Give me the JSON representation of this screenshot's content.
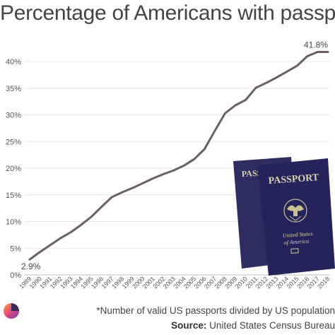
{
  "title": "Percentage of Americans with passports",
  "footnote": "*Number of valid US passports divided by US population",
  "source_label": "Source:",
  "source_text": "United States Census Bureau",
  "passport_image": {
    "cover_text_1": "PASSPORT",
    "cover_text_2": "PASSPORT",
    "cover_subtitle_line1": "United States",
    "cover_subtitle_line2": "of America",
    "color": "#2a2a5e"
  },
  "chart_data": {
    "type": "line",
    "title": "Percentage of Americans with passports",
    "x": [
      "1989",
      "1990",
      "1991",
      "1992",
      "1993",
      "1994",
      "1995",
      "1996",
      "1997",
      "1998",
      "1999",
      "2000",
      "2001",
      "2002",
      "2003",
      "2004",
      "2005",
      "2006",
      "2007",
      "2008",
      "2009",
      "2010",
      "2011",
      "2012",
      "2013",
      "2014",
      "2015",
      "2016",
      "2017",
      "2018"
    ],
    "values": [
      2.9,
      4.3,
      5.6,
      6.9,
      8.0,
      9.4,
      10.9,
      12.8,
      14.6,
      15.5,
      16.3,
      17.2,
      18.1,
      18.9,
      19.6,
      20.5,
      21.7,
      23.6,
      27.0,
      30.3,
      31.8,
      32.8,
      35.1,
      36.0,
      37.0,
      38.1,
      39.2,
      41.0,
      41.8,
      41.8
    ],
    "ylim": [
      0,
      42
    ],
    "yticks": [
      0,
      5,
      10,
      15,
      20,
      25,
      30,
      35,
      40
    ],
    "ytick_labels": [
      "0%",
      "5%",
      "10%",
      "15%",
      "20%",
      "25%",
      "30%",
      "35%",
      "40%"
    ],
    "annotations": [
      {
        "index": 0,
        "text": "2.9%"
      },
      {
        "index": 29,
        "text": "41.8%"
      }
    ],
    "grid": true,
    "line_color": "#6b5f66"
  }
}
